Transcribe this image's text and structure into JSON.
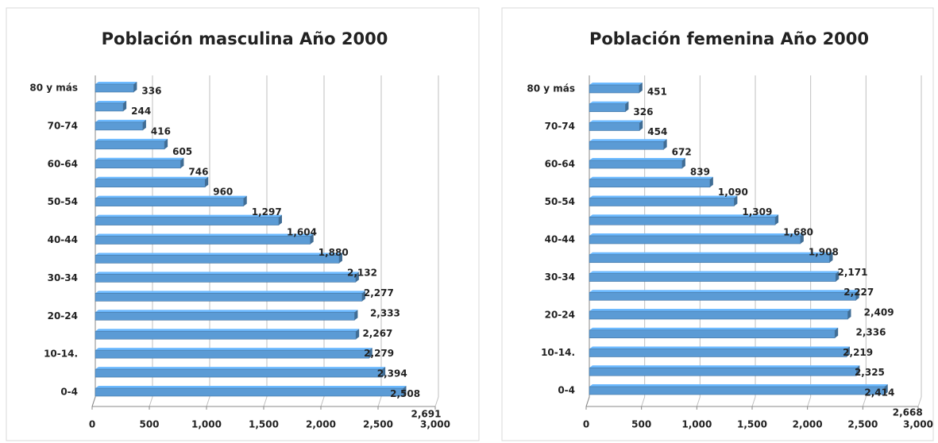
{
  "chart_data": [
    {
      "type": "bar",
      "title": "Población masculina Año 2000",
      "orientation": "horizontal",
      "color": "#5b9bd5",
      "categories": [
        "0-4",
        null,
        "10-14.",
        null,
        "20-24",
        null,
        "30-34",
        null,
        "40-44",
        null,
        "50-54",
        null,
        "60-64",
        null,
        "70-74",
        null,
        "80 y más"
      ],
      "values": [
        2691,
        2508,
        2394,
        2279,
        2267,
        2333,
        2277,
        2132,
        1880,
        1604,
        1297,
        960,
        746,
        605,
        416,
        244,
        336
      ],
      "value_labels": [
        "2,691",
        "2,508",
        "2,394",
        "2,279",
        "2,267",
        "2,333",
        "2,277",
        "2,132",
        "1,880",
        "1,604",
        "1,297",
        "960",
        "746",
        "605",
        "416",
        "244",
        "336"
      ],
      "xlim": [
        0,
        3000
      ],
      "xticks": [
        0,
        500,
        {
          "value": 1000,
          "label": "1,000"
        },
        {
          "value": 1500,
          "label": "1,500"
        },
        {
          "value": 2000,
          "label": "2,000"
        },
        {
          "value": 2500,
          "label": "2,500"
        },
        {
          "value": 3000,
          "label": "3,000"
        }
      ],
      "grid": true
    },
    {
      "type": "bar",
      "title": "Población femenina Año 2000",
      "orientation": "horizontal",
      "color": "#5b9bd5",
      "categories": [
        "0-4",
        null,
        "10-14.",
        null,
        "20-24",
        null,
        "30-34",
        null,
        "40-44",
        null,
        "50-54",
        null,
        "60-64",
        null,
        "70-74",
        null,
        "80 y más"
      ],
      "values": [
        2668,
        2414,
        2325,
        2219,
        2336,
        2409,
        2227,
        2171,
        1908,
        1680,
        1309,
        1090,
        839,
        672,
        454,
        326,
        451
      ],
      "value_labels": [
        "2,668",
        "2,414",
        "2,325",
        "2,219",
        "2,336",
        "2,409",
        "2,227",
        "2,171",
        "1,908",
        "1,680",
        "1,309",
        "1,090",
        "839",
        "672",
        "454",
        "326",
        "451"
      ],
      "xlim": [
        0,
        3000
      ],
      "xticks": [
        0,
        500,
        {
          "value": 1000,
          "label": "1,000"
        },
        {
          "value": 1500,
          "label": "1,500"
        },
        {
          "value": 2000,
          "label": "2,000"
        },
        {
          "value": 2500,
          "label": "2,500"
        },
        {
          "value": 3000,
          "label": "3,000"
        }
      ],
      "grid": true
    }
  ]
}
